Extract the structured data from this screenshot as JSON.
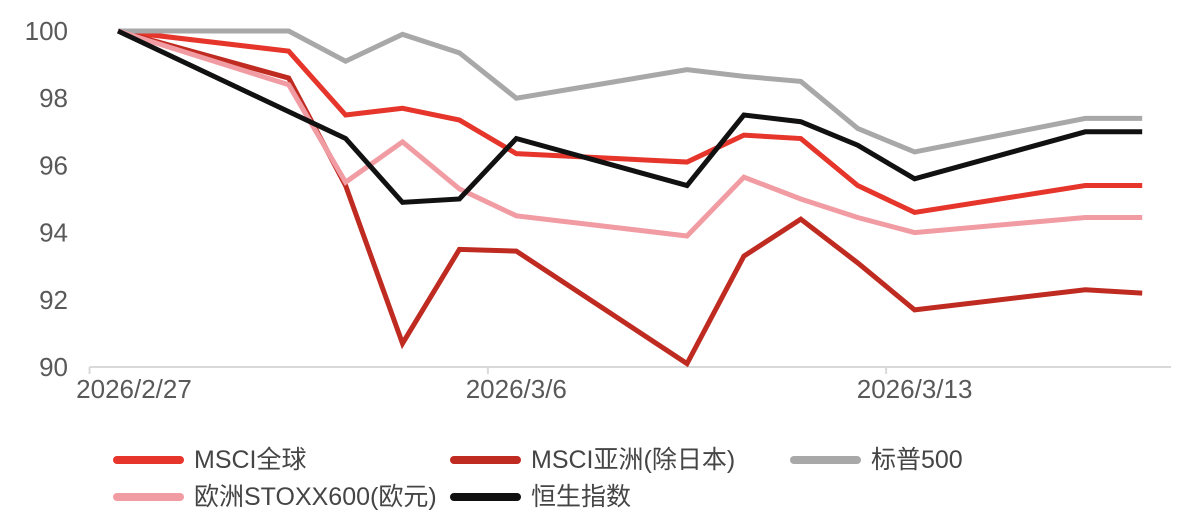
{
  "chart_data": {
    "type": "line",
    "title": "",
    "x": [
      "2026/2/27",
      "2026/3/2",
      "2026/3/3",
      "2026/3/4",
      "2026/3/5",
      "2026/3/6",
      "2026/3/9",
      "2026/3/10",
      "2026/3/11",
      "2026/3/12",
      "2026/3/13",
      "2026/3/16",
      "2026/3/17"
    ],
    "x_tick_labels": [
      "2026/2/27",
      "2026/3/6",
      "2026/3/13"
    ],
    "y_ticks": [
      90,
      92,
      94,
      96,
      98,
      100
    ],
    "ylim": [
      90,
      100
    ],
    "grid": false,
    "legend_position": "bottom",
    "axis_color": "#d9d9d9",
    "label_color": "#595959",
    "series": [
      {
        "name": "MSCI全球",
        "color": "#e6352b",
        "values": [
          100,
          99.4,
          97.5,
          97.7,
          97.35,
          96.35,
          96.1,
          96.9,
          96.8,
          95.4,
          94.6,
          95.4,
          95.4
        ]
      },
      {
        "name": "MSCI亚洲(除日本)",
        "color": "#bf2a21",
        "values": [
          100,
          98.6,
          95.4,
          90.7,
          93.5,
          93.45,
          90.1,
          93.3,
          94.4,
          93.1,
          91.7,
          92.3,
          92.2
        ]
      },
      {
        "name": "标普500",
        "color": "#a8a8a8",
        "values": [
          100,
          100,
          99.1,
          99.9,
          99.35,
          98.0,
          98.85,
          98.65,
          98.5,
          97.1,
          96.4,
          97.4,
          97.4
        ]
      },
      {
        "name": "欧洲STOXX600(欧元)",
        "color": "#f19ba3",
        "values": [
          100,
          98.4,
          95.5,
          96.7,
          95.3,
          94.5,
          93.9,
          95.65,
          95.0,
          94.45,
          94.0,
          94.45,
          94.45
        ]
      },
      {
        "name": "恒生指数",
        "color": "#111111",
        "values": [
          100,
          97.6,
          96.8,
          94.9,
          95.0,
          96.8,
          95.4,
          97.5,
          97.3,
          96.6,
          95.6,
          97.0,
          97.0
        ]
      }
    ]
  },
  "legend": {
    "items": [
      "MSCI全球",
      "MSCI亚洲(除日本)",
      "标普500",
      "欧洲STOXX600(欧元)",
      "恒生指数"
    ]
  }
}
